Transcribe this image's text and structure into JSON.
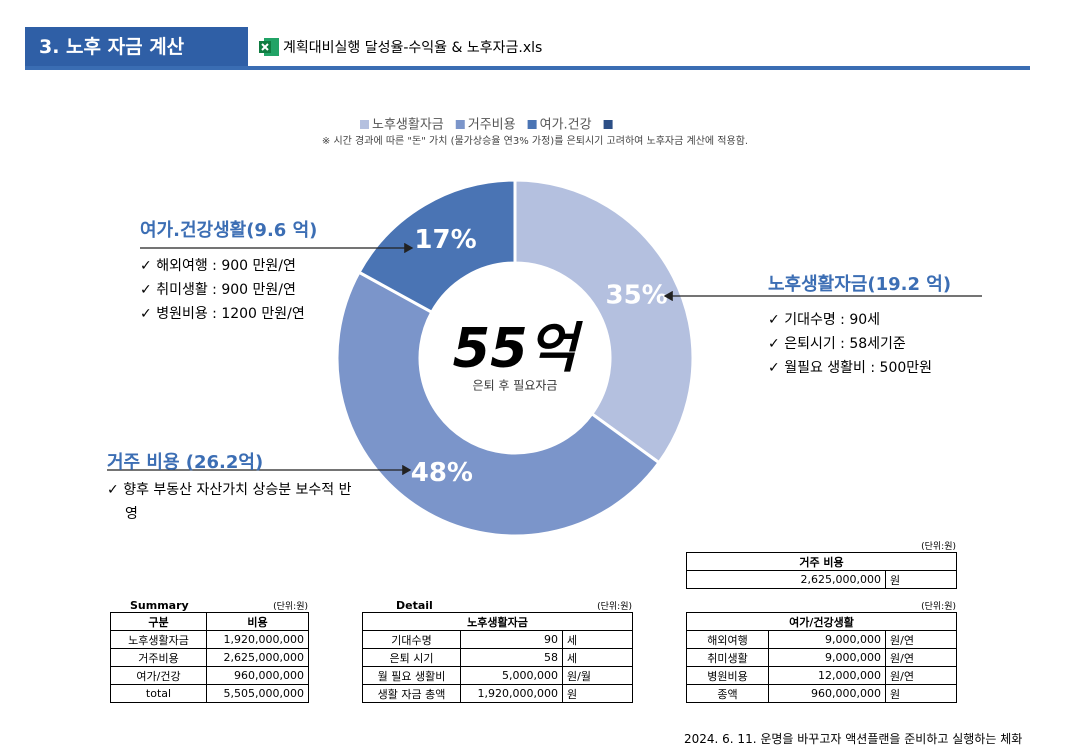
{
  "header": {
    "section": "3. 노후 자금 계산",
    "file": "계획대비실행 달성율-수익율 & 노후자금.xls"
  },
  "chart_data": {
    "type": "donut",
    "subtitle": "※ 시간 경과에 따른 \"돈\" 가치 (물가상승율 연3% 가정)를 은퇴시기 고려하여 노후자금 계산에 적용함.",
    "categories": [
      "노후생활자금",
      "거주비용",
      "여가.건강"
    ],
    "values": [
      35,
      48,
      17
    ],
    "value_labels": [
      "35%",
      "48%",
      "17%"
    ],
    "colors": [
      "#b4c0df",
      "#7b95ca",
      "#4a74b4"
    ],
    "center_label": "55억",
    "center_sublabel": "은퇴 후 필요자금"
  },
  "callouts": [
    {
      "title": "여가.건강생활(9.6 억)",
      "items": [
        "해외여행 :  900 만원/연",
        "취미생활 :  900 만원/연",
        "병원비용 : 1200 만원/연"
      ]
    },
    {
      "title": "노후생활자금(19.2 억)",
      "items": [
        "기대수명 : 90세",
        "은퇴시기 : 58세기준",
        "월필요 생활비 : 500만원"
      ]
    },
    {
      "title": "거주 비용 (26.2억)",
      "items": [
        "향후 부동산 자산가치 상승분 보수적 반영"
      ]
    }
  ],
  "tables": {
    "summary": {
      "title": "Summary",
      "unit": "(단위:원)",
      "header": [
        "구분",
        "비용"
      ],
      "rows": [
        [
          "노후생활자금",
          "1,920,000,000"
        ],
        [
          "거주비용",
          "2,625,000,000"
        ],
        [
          "여가/건강",
          "960,000,000"
        ],
        [
          "total",
          "5,505,000,000"
        ]
      ]
    },
    "detail": {
      "title": "Detail",
      "unit": "(단위:원)",
      "header": [
        "노후생활자금"
      ],
      "rows": [
        [
          "기대수명",
          "90",
          "세"
        ],
        [
          "은퇴 시기",
          "58",
          "세"
        ],
        [
          "월 필요 생활비",
          "5,000,000",
          "원/월"
        ],
        [
          "생활 자금 총액",
          "1,920,000,000",
          "원"
        ]
      ]
    },
    "housing": {
      "unit": "(단위:원)",
      "header": [
        "거주 비용"
      ],
      "rows": [
        [
          "2,625,000,000",
          "원"
        ]
      ]
    },
    "leisure": {
      "unit": "(단위:원)",
      "header": [
        "여가/건강생활"
      ],
      "rows": [
        [
          "해외여행",
          "9,000,000",
          "원/연"
        ],
        [
          "취미생활",
          "9,000,000",
          "원/연"
        ],
        [
          "병원비용",
          "12,000,000",
          "원/연"
        ],
        [
          "종액",
          "960,000,000",
          "원"
        ]
      ]
    }
  },
  "footer": "2024. 6. 11. 운명을 바꾸고자 액션플랜을 준비하고 실행하는 체화"
}
